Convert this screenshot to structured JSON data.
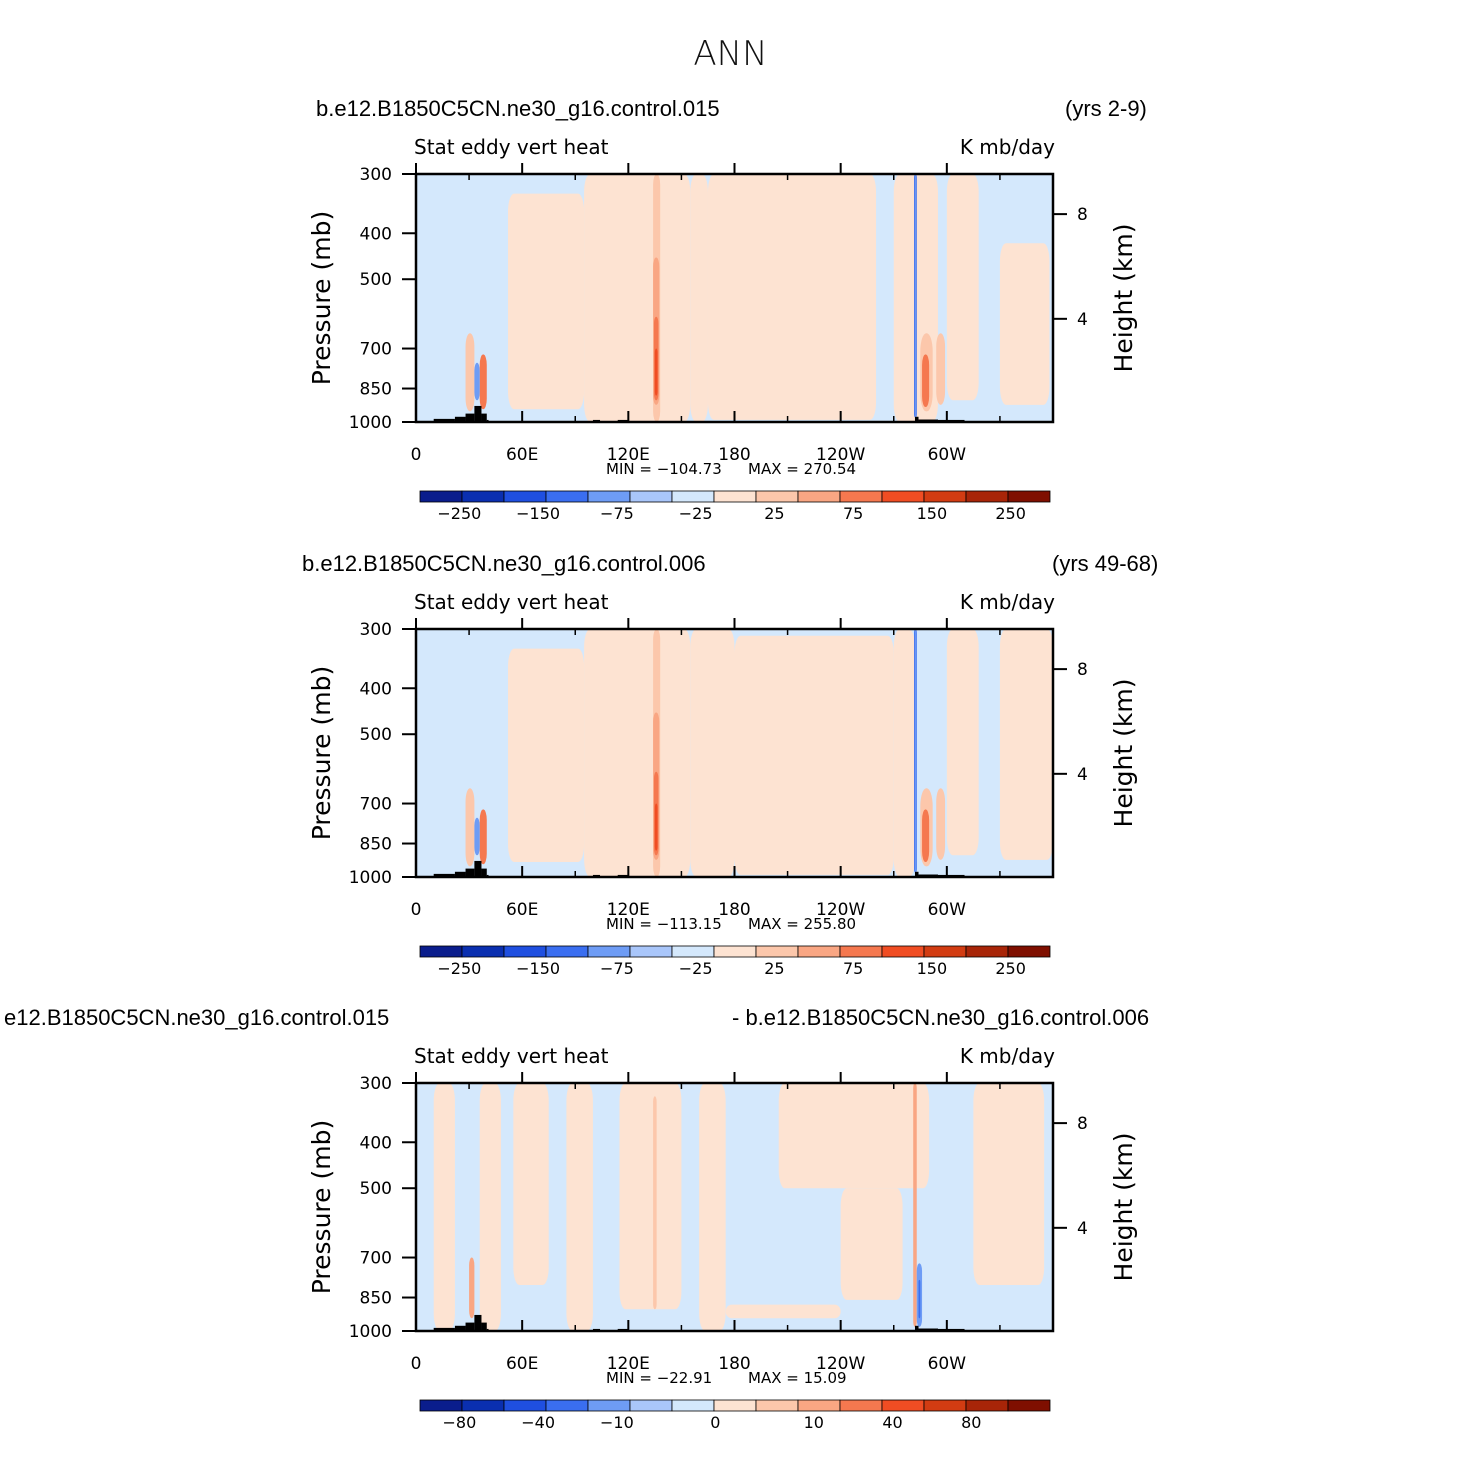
{
  "page": {
    "title": "ANN"
  },
  "panels": [
    {
      "case_left": "b.e12.B1850C5CN.ne30_g16.control.015",
      "case_right": "(yrs 2-9)",
      "var_label": "Stat  eddy  vert  heat",
      "units": "K  mb/day",
      "min_label": "MIN  =  −104.73",
      "max_label": "MAX  =  270.54",
      "colorbar_labels": [
        "−250",
        "−150",
        "−75",
        "−25",
        "25",
        "75",
        "150",
        "250"
      ]
    },
    {
      "case_left": "b.e12.B1850C5CN.ne30_g16.control.006",
      "case_right": "(yrs 49-68)",
      "var_label": "Stat  eddy  vert  heat",
      "units": "K  mb/day",
      "min_label": "MIN  =  −113.15",
      "max_label": "MAX  =  255.80",
      "colorbar_labels": [
        "−250",
        "−150",
        "−75",
        "−25",
        "25",
        "75",
        "150",
        "250"
      ]
    },
    {
      "case_left": "e12.B1850C5CN.ne30_g16.control.015",
      "case_right": "- b.e12.B1850C5CN.ne30_g16.control.006",
      "var_label": "Stat  eddy  vert  heat",
      "units": "K  mb/day",
      "min_label": "MIN  =  −22.91",
      "max_label": "MAX  =    15.09",
      "colorbar_labels": [
        "−80",
        "−40",
        "−10",
        "0",
        "10",
        "40",
        "80"
      ]
    }
  ],
  "chart_data": [
    {
      "type": "heatmap",
      "title": "Stat  eddy  vert  heat",
      "units": "K  mb/day",
      "xlabel": "",
      "ylabel": "Pressure  (mb)",
      "ylabel_right": "Height  (km)",
      "x_ticks": [
        "0",
        "60E",
        "120E",
        "180",
        "120W",
        "60W"
      ],
      "y_ticks": [
        "300",
        "400",
        "500",
        "700",
        "850",
        "1000"
      ],
      "y_right_ticks": [
        "8",
        "4"
      ],
      "min": -104.73,
      "max": 270.54,
      "levels": [
        -250,
        -150,
        -75,
        -25,
        25,
        75,
        150,
        250
      ],
      "colors": [
        "#0a1d8c",
        "#0a2fb0",
        "#1f4fe0",
        "#3a6ef0",
        "#6e9cf5",
        "#a9c6fa",
        "#d4e8fc",
        "#fde3d2",
        "#fcc7ab",
        "#f9a683",
        "#f5784f",
        "#f04d23",
        "#d23c12",
        "#a82508",
        "#7f0f00"
      ]
    },
    {
      "type": "heatmap",
      "title": "Stat  eddy  vert  heat",
      "units": "K  mb/day",
      "xlabel": "",
      "ylabel": "Pressure  (mb)",
      "ylabel_right": "Height  (km)",
      "x_ticks": [
        "0",
        "60E",
        "120E",
        "180",
        "120W",
        "60W"
      ],
      "y_ticks": [
        "300",
        "400",
        "500",
        "700",
        "850",
        "1000"
      ],
      "y_right_ticks": [
        "8",
        "4"
      ],
      "min": -113.15,
      "max": 255.8,
      "levels": [
        -250,
        -150,
        -75,
        -25,
        25,
        75,
        150,
        250
      ],
      "colors": [
        "#0a1d8c",
        "#0a2fb0",
        "#1f4fe0",
        "#3a6ef0",
        "#6e9cf5",
        "#a9c6fa",
        "#d4e8fc",
        "#fde3d2",
        "#fcc7ab",
        "#f9a683",
        "#f5784f",
        "#f04d23",
        "#d23c12",
        "#a82508",
        "#7f0f00"
      ]
    },
    {
      "type": "heatmap",
      "title": "Stat  eddy  vert  heat",
      "units": "K  mb/day",
      "xlabel": "",
      "ylabel": "Pressure  (mb)",
      "ylabel_right": "Height  (km)",
      "x_ticks": [
        "0",
        "60E",
        "120E",
        "180",
        "120W",
        "60W"
      ],
      "y_ticks": [
        "300",
        "400",
        "500",
        "700",
        "850",
        "1000"
      ],
      "y_right_ticks": [
        "8",
        "4"
      ],
      "min": -22.91,
      "max": 15.09,
      "levels": [
        -80,
        -40,
        -10,
        0,
        10,
        40,
        80
      ],
      "colors": [
        "#0a1d8c",
        "#0a2fb0",
        "#1f4fe0",
        "#3a6ef0",
        "#6e9cf5",
        "#a9c6fa",
        "#d4e8fc",
        "#fde3d2",
        "#fcc7ab",
        "#f9a683",
        "#f5784f",
        "#f04d23",
        "#d23c12",
        "#a82508",
        "#7f0f00"
      ]
    }
  ]
}
